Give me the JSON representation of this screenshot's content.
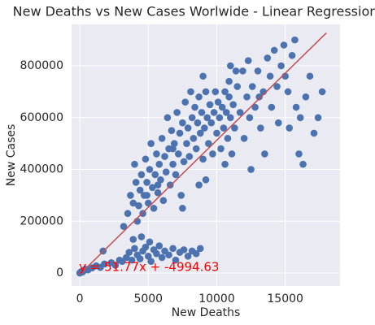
{
  "chart_data": {
    "type": "scatter",
    "title": "New Deaths vs New Cases Worlwide - Linear Regression",
    "x_label": "New Deaths",
    "y_label": "New Cases",
    "xlim": [
      -600,
      19000
    ],
    "ylim": [
      -50000,
      960000
    ],
    "xticks": [
      0,
      5000,
      10000,
      15000
    ],
    "yticks": [
      0,
      200000,
      400000,
      600000,
      800000
    ],
    "grid": true,
    "background": "#eaeaf2",
    "series": [
      {
        "color": "#4c72b0",
        "x": [
          0,
          50,
          120,
          200,
          300,
          400,
          600,
          900,
          1200,
          1500,
          1800,
          1700,
          2300,
          2600,
          2900,
          3100,
          3400,
          3600,
          3800,
          4000,
          4200,
          4400,
          4600,
          4800,
          5000,
          5200,
          5400,
          5600,
          5800,
          6000,
          6200,
          6500,
          6800,
          7000,
          7300,
          7600,
          7900,
          8200,
          8500,
          8800,
          3900,
          4500,
          5100,
          3200,
          3500,
          3700,
          3900,
          4000,
          4100,
          4200,
          4300,
          4400,
          4500,
          4600,
          4700,
          4800,
          4900,
          5000,
          5100,
          5200,
          5300,
          5400,
          5500,
          5600,
          5700,
          5800,
          5900,
          6000,
          6100,
          6200,
          6300,
          6400,
          6500,
          6600,
          6700,
          6800,
          6900,
          7000,
          7100,
          7200,
          7300,
          7400,
          7500,
          7600,
          7700,
          7800,
          7900,
          8000,
          8100,
          8200,
          8300,
          8400,
          8500,
          8600,
          8700,
          8800,
          8900,
          9000,
          9100,
          9200,
          9300,
          9400,
          9500,
          9600,
          9700,
          9800,
          9900,
          10000,
          10100,
          10200,
          10300,
          10400,
          10500,
          10600,
          10700,
          10800,
          10900,
          11000,
          11100,
          11200,
          11300,
          11500,
          11700,
          11900,
          12000,
          12200,
          12400,
          12500,
          12600,
          12800,
          13000,
          13200,
          13400,
          13500,
          13700,
          13900,
          14000,
          14200,
          14400,
          14500,
          14700,
          14900,
          15000,
          15200,
          15300,
          15500,
          15700,
          15800,
          16000,
          16100,
          16300,
          16500,
          16800,
          17100,
          17400,
          17700,
          9200,
          8700,
          10600,
          7500,
          11400,
          10900,
          12300,
          13100,
          6800,
          5700,
          4900,
          9000,
          11000
        ],
        "y": [
          0,
          3000,
          6000,
          4000,
          10000,
          15000,
          12000,
          20000,
          28000,
          22000,
          35000,
          85000,
          40000,
          30000,
          50000,
          45000,
          60000,
          80000,
          50000,
          95000,
          70000,
          55000,
          85000,
          100000,
          65000,
          45000,
          90000,
          75000,
          105000,
          60000,
          85000,
          70000,
          95000,
          50000,
          80000,
          90000,
          65000,
          85000,
          75000,
          95000,
          130000,
          140000,
          120000,
          180000,
          230000,
          300000,
          270000,
          420000,
          350000,
          200000,
          260000,
          320000,
          380000,
          230000,
          300000,
          440000,
          350000,
          270000,
          400000,
          500000,
          330000,
          250000,
          380000,
          460000,
          310000,
          420000,
          360000,
          520000,
          280000,
          450000,
          390000,
          600000,
          480000,
          340000,
          550000,
          420000,
          500000,
          380000,
          620000,
          460000,
          540000,
          300000,
          580000,
          430000,
          660000,
          500000,
          560000,
          450000,
          700000,
          600000,
          520000,
          640000,
          480000,
          580000,
          680000,
          540000,
          620000,
          440000,
          560000,
          700000,
          600000,
          500000,
          650000,
          580000,
          460000,
          620000,
          700000,
          540000,
          660000,
          600000,
          480000,
          640000,
          560000,
          700000,
          620000,
          520000,
          680000,
          600000,
          460000,
          650000,
          560000,
          720000,
          620000,
          780000,
          520000,
          680000,
          600000,
          400000,
          720000,
          640000,
          780000,
          560000,
          700000,
          460000,
          830000,
          760000,
          640000,
          860000,
          720000,
          580000,
          800000,
          880000,
          760000,
          700000,
          560000,
          840000,
          900000,
          640000,
          460000,
          600000,
          420000,
          680000,
          760000,
          540000,
          600000,
          700000,
          360000,
          340000,
          420000,
          250000,
          780000,
          740000,
          820000,
          680000,
          480000,
          340000,
          300000,
          760000,
          800000
        ]
      }
    ],
    "regression": {
      "slope": 51.77,
      "intercept": -4994.63,
      "x": [
        0,
        18000
      ],
      "color": "#c44e52"
    },
    "annotation": {
      "text": "y = 51.77x + -4994.63",
      "color": "#ff0000"
    }
  }
}
